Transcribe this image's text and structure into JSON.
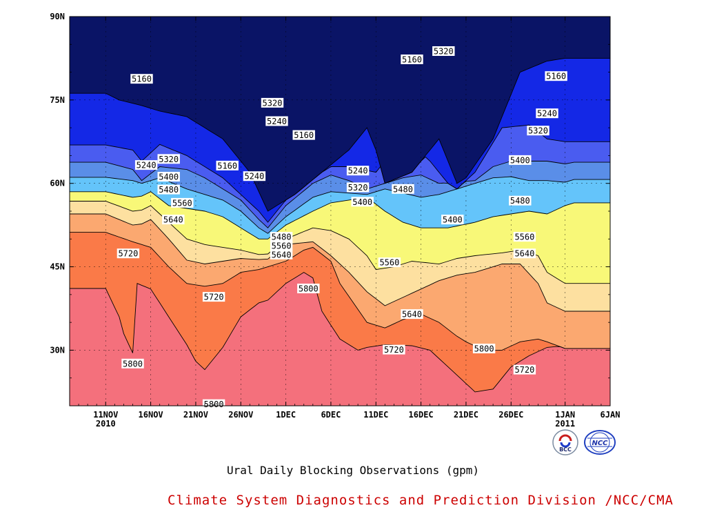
{
  "chart_data": {
    "type": "heatmap",
    "title": "Ural Daily Blocking Observations (gpm)",
    "xlabel": "",
    "ylabel": "",
    "x_ticks": [
      "11NOV\n2010",
      "16NOV",
      "21NOV",
      "26NOV",
      "1DEC",
      "6DEC",
      "11DEC",
      "16DEC",
      "21DEC",
      "26DEC",
      "1JAN\n2011",
      "6JAN"
    ],
    "y_ticks": [
      "30N",
      "45N",
      "60N",
      "75N",
      "90N"
    ],
    "ylim": [
      20,
      90
    ],
    "xlim": [
      "2010-11-07",
      "2011-01-06"
    ],
    "grid": true,
    "contour_levels": [
      5160,
      5240,
      5320,
      5400,
      5480,
      5560,
      5640,
      5720,
      5800
    ],
    "band_colors": [
      "#0a1466",
      "#1428e6",
      "#4a5cf0",
      "#5a8ee8",
      "#64c4fa",
      "#f8f878",
      "#fde0a0",
      "#fba870",
      "#fa7a48",
      "#f4707c"
    ],
    "series": [
      {
        "values": [
          [
            11,
            76.2
          ],
          [
            12.5,
            75
          ],
          [
            15,
            74
          ],
          [
            17,
            73
          ],
          [
            20,
            72
          ],
          [
            24,
            68
          ],
          [
            27,
            62
          ],
          [
            29,
            55
          ],
          [
            32,
            58
          ],
          [
            35,
            62
          ],
          [
            38,
            66
          ],
          [
            40,
            70
          ],
          [
            41,
            66
          ],
          [
            42,
            60
          ],
          [
            45,
            62
          ],
          [
            48,
            68
          ],
          [
            50,
            60
          ],
          [
            51,
            61
          ],
          [
            54,
            68
          ],
          [
            56,
            76
          ],
          [
            57,
            80
          ],
          [
            60,
            82
          ],
          [
            62,
            82.5
          ],
          [
            63,
            82.5
          ]
        ]
      },
      {
        "values": [
          [
            11,
            66.9
          ],
          [
            14,
            66
          ],
          [
            15,
            64
          ],
          [
            17,
            67
          ],
          [
            20,
            65
          ],
          [
            22,
            63
          ],
          [
            24,
            61
          ],
          [
            26,
            58
          ],
          [
            28,
            55
          ],
          [
            29,
            53
          ],
          [
            31,
            57
          ],
          [
            34,
            61
          ],
          [
            36,
            63
          ],
          [
            38,
            63
          ],
          [
            41,
            62
          ],
          [
            43,
            66
          ],
          [
            45,
            67
          ],
          [
            47,
            64
          ],
          [
            49,
            60
          ],
          [
            50,
            59
          ],
          [
            52,
            62
          ],
          [
            55,
            70
          ],
          [
            58,
            70.5
          ],
          [
            60,
            68
          ],
          [
            62,
            67.5
          ],
          [
            63,
            67.5
          ]
        ]
      },
      {
        "values": [
          [
            11,
            63.8
          ],
          [
            14,
            62.5
          ],
          [
            15,
            60.5
          ],
          [
            17,
            63
          ],
          [
            20,
            62.5
          ],
          [
            22,
            61
          ],
          [
            24,
            59
          ],
          [
            26,
            57
          ],
          [
            28,
            53.5
          ],
          [
            29,
            52
          ],
          [
            31,
            56
          ],
          [
            34,
            60
          ],
          [
            36,
            61.5
          ],
          [
            38,
            60.5
          ],
          [
            40,
            59
          ],
          [
            44,
            61
          ],
          [
            46,
            61.5
          ],
          [
            48,
            60
          ],
          [
            52,
            60.5
          ],
          [
            54,
            63
          ],
          [
            56,
            64
          ],
          [
            58,
            64
          ],
          [
            60,
            64
          ],
          [
            62,
            63.5
          ],
          [
            63,
            63.8
          ]
        ]
      },
      {
        "values": [
          [
            11,
            61.1
          ],
          [
            14,
            60.5
          ],
          [
            15,
            60
          ],
          [
            17,
            61
          ],
          [
            20,
            59
          ],
          [
            22,
            58
          ],
          [
            24,
            57
          ],
          [
            26,
            55
          ],
          [
            28,
            52
          ],
          [
            29,
            51
          ],
          [
            31,
            54
          ],
          [
            34,
            57.5
          ],
          [
            36,
            58.5
          ],
          [
            40,
            58
          ],
          [
            42,
            59
          ],
          [
            46,
            57.5
          ],
          [
            48,
            58
          ],
          [
            52,
            60
          ],
          [
            54,
            61
          ],
          [
            56,
            61.2
          ],
          [
            58,
            60.5
          ],
          [
            60,
            60.5
          ],
          [
            62,
            60.2
          ],
          [
            63,
            60.7
          ]
        ]
      },
      {
        "values": [
          [
            11,
            58.5
          ],
          [
            14,
            57.5
          ],
          [
            15,
            57.7
          ],
          [
            16,
            58.5
          ],
          [
            18,
            56
          ],
          [
            20,
            55.5
          ],
          [
            22,
            55
          ],
          [
            24,
            54
          ],
          [
            26,
            52
          ],
          [
            28,
            50
          ],
          [
            29,
            50
          ],
          [
            31,
            52.5
          ],
          [
            34,
            55
          ],
          [
            36,
            56.5
          ],
          [
            38,
            57
          ],
          [
            40,
            57.5
          ],
          [
            42,
            55
          ],
          [
            44,
            53
          ],
          [
            46,
            52
          ],
          [
            49,
            52
          ],
          [
            52,
            53
          ],
          [
            54,
            54
          ],
          [
            56,
            54.5
          ],
          [
            58,
            55
          ],
          [
            60,
            54.5
          ],
          [
            62,
            56
          ],
          [
            63,
            56.5
          ]
        ]
      },
      {
        "values": [
          [
            11,
            56.8
          ],
          [
            14,
            55
          ],
          [
            15,
            55.2
          ],
          [
            16,
            56
          ],
          [
            18,
            53
          ],
          [
            20,
            50
          ],
          [
            22,
            49
          ],
          [
            24,
            48.5
          ],
          [
            26,
            48
          ],
          [
            28,
            47.2
          ],
          [
            29,
            47.3
          ],
          [
            31,
            50
          ],
          [
            34,
            52
          ],
          [
            36,
            51.5
          ],
          [
            38,
            50
          ],
          [
            40,
            47
          ],
          [
            41,
            44.5
          ],
          [
            43,
            45
          ],
          [
            45,
            46
          ],
          [
            48,
            45.5
          ],
          [
            50,
            46.5
          ],
          [
            52,
            47
          ],
          [
            55,
            47.5
          ],
          [
            57,
            48
          ],
          [
            59,
            47
          ],
          [
            60,
            44
          ],
          [
            62,
            42
          ],
          [
            63,
            42
          ]
        ]
      },
      {
        "values": [
          [
            11,
            54.5
          ],
          [
            14,
            52.5
          ],
          [
            15,
            52.7
          ],
          [
            16,
            53.5
          ],
          [
            18,
            50
          ],
          [
            20,
            46.2
          ],
          [
            22,
            45.5
          ],
          [
            24,
            46
          ],
          [
            26,
            46.5
          ],
          [
            28,
            46.3
          ],
          [
            29,
            46.4
          ],
          [
            31,
            49
          ],
          [
            34,
            49.5
          ],
          [
            36,
            47
          ],
          [
            38,
            44
          ],
          [
            40,
            40.5
          ],
          [
            42,
            38
          ],
          [
            44,
            39.5
          ],
          [
            46,
            41
          ],
          [
            48,
            42.5
          ],
          [
            50,
            43.5
          ],
          [
            52,
            44
          ],
          [
            55,
            45.5
          ],
          [
            57,
            45.5
          ],
          [
            59,
            42
          ],
          [
            60,
            38.5
          ],
          [
            62,
            37
          ],
          [
            63,
            37
          ]
        ]
      },
      {
        "values": [
          [
            11,
            51.2
          ],
          [
            14,
            49.5
          ],
          [
            15,
            49
          ],
          [
            16,
            48.5
          ],
          [
            18,
            45
          ],
          [
            20,
            42
          ],
          [
            22,
            41.5
          ],
          [
            24,
            42
          ],
          [
            26,
            44
          ],
          [
            28,
            44.5
          ],
          [
            29,
            45
          ],
          [
            31,
            46
          ],
          [
            33,
            48
          ],
          [
            34,
            48.5
          ],
          [
            36,
            46
          ],
          [
            37,
            42
          ],
          [
            40,
            35
          ],
          [
            42,
            34
          ],
          [
            44,
            35.5
          ],
          [
            46,
            36.5
          ],
          [
            48,
            35
          ],
          [
            50,
            32.5
          ],
          [
            51,
            31.5
          ],
          [
            53,
            30
          ],
          [
            55,
            30
          ],
          [
            57,
            31.5
          ],
          [
            59,
            32
          ],
          [
            60,
            31.5
          ],
          [
            62,
            30.3
          ],
          [
            63,
            30.3
          ]
        ]
      },
      {
        "values": [
          [
            11,
            41.1
          ],
          [
            12.5,
            36
          ],
          [
            13,
            33
          ],
          [
            14,
            29.5
          ],
          [
            14.5,
            42
          ],
          [
            16,
            41
          ],
          [
            18,
            36
          ],
          [
            20,
            31
          ],
          [
            21,
            28
          ],
          [
            22,
            26.5
          ],
          [
            24,
            30.5
          ],
          [
            26,
            36
          ],
          [
            28,
            38.5
          ],
          [
            29,
            39
          ],
          [
            31,
            42
          ],
          [
            33,
            44
          ],
          [
            34,
            43
          ],
          [
            35,
            37
          ],
          [
            37,
            32
          ],
          [
            39,
            30
          ],
          [
            40,
            30.5
          ],
          [
            42,
            31
          ],
          [
            45,
            30.8
          ],
          [
            47,
            30
          ],
          [
            49,
            27
          ],
          [
            51,
            24
          ],
          [
            52,
            22.5
          ],
          [
            54,
            23
          ],
          [
            56,
            27
          ],
          [
            58,
            29
          ],
          [
            60,
            30.5
          ],
          [
            62,
            30.8
          ],
          [
            63,
            30.7
          ]
        ]
      }
    ],
    "labels": [
      {
        "text": "5160",
        "x": 15,
        "y": 78.8
      },
      {
        "text": "5240",
        "x": 15.5,
        "y": 63.3
      },
      {
        "text": "5320",
        "x": 18,
        "y": 64.4
      },
      {
        "text": "5400",
        "x": 18,
        "y": 61.2
      },
      {
        "text": "5480",
        "x": 18,
        "y": 58.9
      },
      {
        "text": "5560",
        "x": 19.5,
        "y": 56.5
      },
      {
        "text": "5640",
        "x": 18.5,
        "y": 53.5
      },
      {
        "text": "5720",
        "x": 13.5,
        "y": 47.4
      },
      {
        "text": "5800",
        "x": 14,
        "y": 27.6
      },
      {
        "text": "5160",
        "x": 24.5,
        "y": 63.2
      },
      {
        "text": "5240",
        "x": 27.5,
        "y": 61.3
      },
      {
        "text": "5320",
        "x": 29.5,
        "y": 74.5
      },
      {
        "text": "5240",
        "x": 30,
        "y": 71.2
      },
      {
        "text": "5160",
        "x": 33,
        "y": 68.7
      },
      {
        "text": "5720",
        "x": 23,
        "y": 39.6
      },
      {
        "text": "5800",
        "x": 23,
        "y": 20.3
      },
      {
        "text": "5480",
        "x": 30.5,
        "y": 50.4
      },
      {
        "text": "5560",
        "x": 30.5,
        "y": 48.8
      },
      {
        "text": "5640",
        "x": 30.5,
        "y": 47.2
      },
      {
        "text": "5800",
        "x": 33.5,
        "y": 41.1
      },
      {
        "text": "5240",
        "x": 39,
        "y": 62.3
      },
      {
        "text": "5320",
        "x": 39,
        "y": 59.3
      },
      {
        "text": "5400",
        "x": 39.5,
        "y": 56.7
      },
      {
        "text": "5480",
        "x": 44,
        "y": 59
      },
      {
        "text": "5160",
        "x": 45,
        "y": 82.3
      },
      {
        "text": "5320",
        "x": 48.5,
        "y": 83.8
      },
      {
        "text": "5400",
        "x": 49.5,
        "y": 53.5
      },
      {
        "text": "5560",
        "x": 42.5,
        "y": 45.8
      },
      {
        "text": "5640",
        "x": 45,
        "y": 36.5
      },
      {
        "text": "5720",
        "x": 43,
        "y": 30.1
      },
      {
        "text": "5800",
        "x": 53,
        "y": 30.3
      },
      {
        "text": "5720",
        "x": 57.5,
        "y": 26.5
      },
      {
        "text": "5400",
        "x": 57,
        "y": 64.2
      },
      {
        "text": "5480",
        "x": 57,
        "y": 56.9
      },
      {
        "text": "5560",
        "x": 57.5,
        "y": 50.4
      },
      {
        "text": "5640",
        "x": 57.5,
        "y": 47.4
      },
      {
        "text": "5320",
        "x": 59,
        "y": 69.5
      },
      {
        "text": "5240",
        "x": 60,
        "y": 72.6
      },
      {
        "text": "5160",
        "x": 61,
        "y": 79.3
      }
    ]
  },
  "footer": {
    "title": "Ural Daily Blocking Observations (gpm)",
    "credit": "Climate System Diagnostics and Prediction Division /NCC/CMA",
    "logo_bcc_text": "BCC",
    "logo_ncc_text": "NCC"
  }
}
